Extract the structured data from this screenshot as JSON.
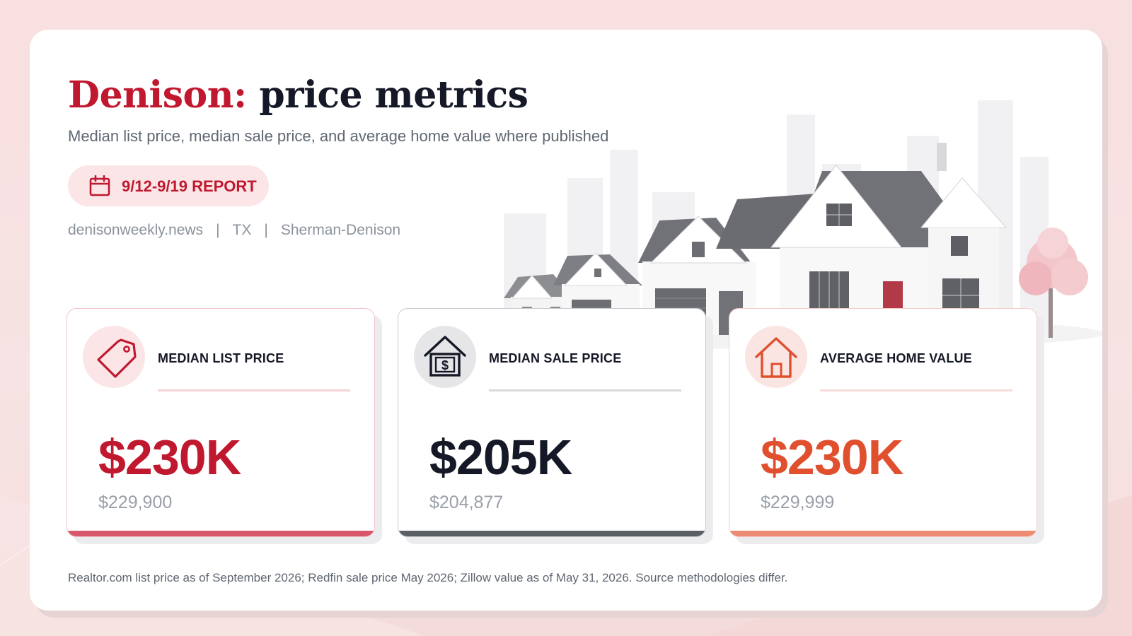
{
  "header": {
    "city": "Denison:",
    "title_rest": "price metrics",
    "subtitle": "Median list price, median sale price, and average home value where published"
  },
  "report_badge": {
    "label": "9/12-9/19 REPORT",
    "icon": "calendar-icon"
  },
  "meta": {
    "source_site": "denisonweekly.news",
    "state": "TX",
    "metro": "Sherman-Denison",
    "separator": "|"
  },
  "cards": [
    {
      "label": "MEDIAN LIST PRICE",
      "value": "$230K",
      "exact": "$229,900",
      "icon": "price-tag-icon",
      "accent": "#c0182f",
      "bar_color": "#d9566a",
      "icon_bg": "#fbe5e6",
      "rule_color": "#f6d4d6"
    },
    {
      "label": "MEDIAN SALE PRICE",
      "value": "$205K",
      "exact": "$204,877",
      "icon": "house-dollar-icon",
      "accent": "#151826",
      "bar_color": "#5b5f66",
      "icon_bg": "#e6e6e8",
      "rule_color": "#d8d9dc"
    },
    {
      "label": "AVERAGE HOME VALUE",
      "value": "$230K",
      "exact": "$229,999",
      "icon": "home-icon",
      "accent": "#e0502e",
      "bar_color": "#ec8b72",
      "icon_bg": "#fbe5e3",
      "rule_color": "#f8dcd8"
    }
  ],
  "footnote": "Realtor.com list price as of September 2026; Redfin sale price May 2026; Zillow value as of May 31, 2026. Source methodologies differ."
}
